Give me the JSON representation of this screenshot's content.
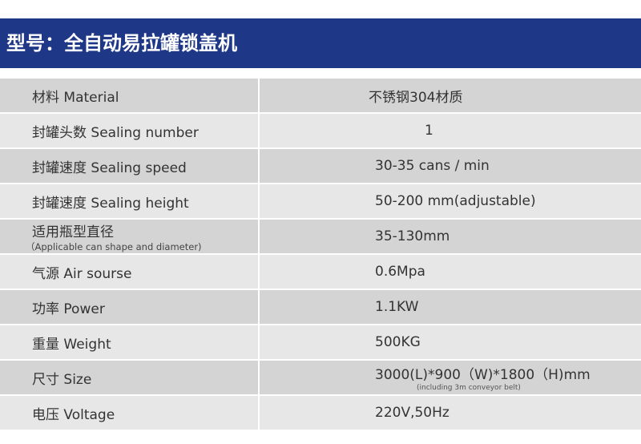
{
  "title": "型号：全自动易拉罐锁盖机",
  "rows": [
    {
      "label": "材料  Material",
      "value": "不锈钢304材质"
    },
    {
      "label": "封罐头数  Sealing number",
      "value": "1"
    },
    {
      "label": "封罐速度  Sealing speed",
      "value": "30-35 cans / min"
    },
    {
      "label": "封罐速度  Sealing height",
      "value": "50-200 mm(adjustable)"
    },
    {
      "label": "适用瓶型直径",
      "sublabel": "（Applicable can shape and diameter)",
      "value": "35-130mm"
    },
    {
      "label": "气源  Air sourse",
      "value": "0.6Mpa"
    },
    {
      "label": "功率  Power",
      "value": "1.1KW"
    },
    {
      "label": "重量  Weight",
      "value": "500KG"
    },
    {
      "label": "尺寸  Size",
      "value": "3000(L)*900（W)*1800（H)mm",
      "subvalue": "(including 3m conveyor belt)"
    },
    {
      "label": "电压  Voltage",
      "value": "220V,50Hz"
    }
  ]
}
